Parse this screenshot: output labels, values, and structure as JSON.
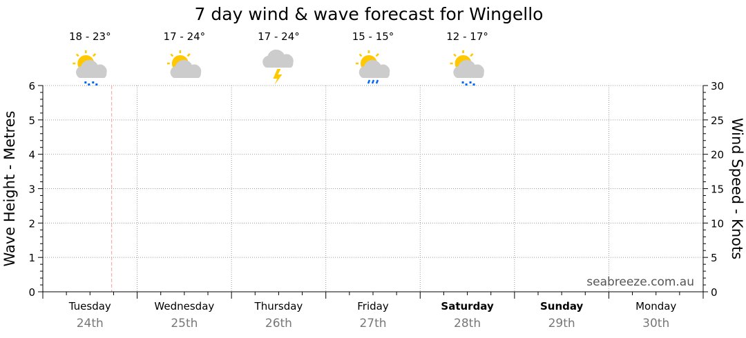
{
  "chart_data": {
    "type": "line",
    "title": "7 day wind & wave forecast for Wingello",
    "ylabel": "Wave Height - Metres",
    "y2label": "Wind Speed - Knots",
    "ylim": [
      0,
      6
    ],
    "y2lim": [
      0,
      30
    ],
    "yticks": [
      "0",
      "1",
      "2",
      "3",
      "4",
      "5",
      "6"
    ],
    "y2ticks": [
      "0",
      "5",
      "10",
      "15",
      "20",
      "25",
      "30"
    ],
    "grid": true,
    "days": [
      {
        "name": "Tuesday",
        "date": "24th",
        "bold": false,
        "temp": "18 - 23°",
        "icon": "sun-cloud-showers-icon"
      },
      {
        "name": "Wednesday",
        "date": "25th",
        "bold": false,
        "temp": "17 - 24°",
        "icon": "sun-cloud-icon"
      },
      {
        "name": "Thursday",
        "date": "26th",
        "bold": false,
        "temp": "17 - 24°",
        "icon": "cloud-storm-icon"
      },
      {
        "name": "Friday",
        "date": "27th",
        "bold": false,
        "temp": "15 - 15°",
        "icon": "sun-cloud-rain-icon"
      },
      {
        "name": "Saturday",
        "date": "28th",
        "bold": true,
        "temp": "12 - 17°",
        "icon": "sun-cloud-showers-icon"
      },
      {
        "name": "Sunday",
        "date": "29th",
        "bold": true
      },
      {
        "name": "Monday",
        "date": "30th",
        "bold": false
      }
    ],
    "now_marker_fraction_of_first_day": 0.73,
    "series": [],
    "watermark": "seabreeze.com.au",
    "colors": {
      "grid": "#999999",
      "now": "#ff9999",
      "sun": "#ffc800",
      "cloud": "#cccccc",
      "rain": "#0066ff",
      "date": "#777777"
    }
  }
}
